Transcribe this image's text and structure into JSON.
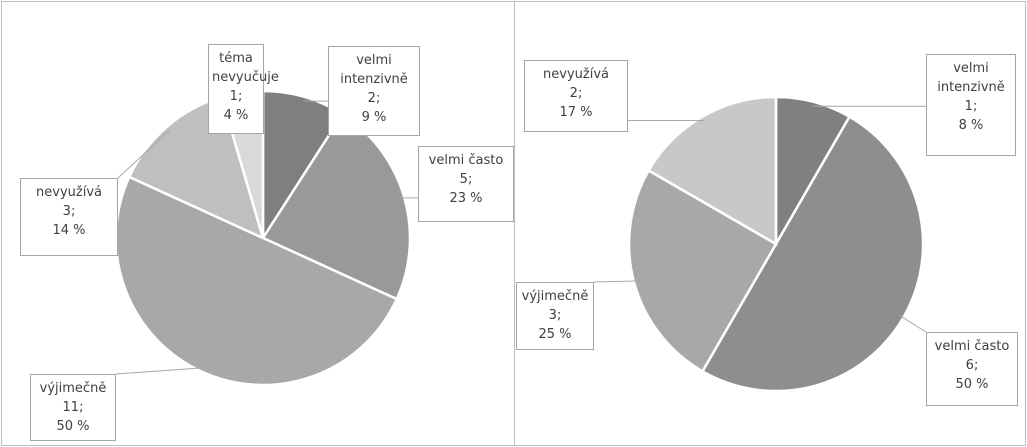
{
  "chart_data": [
    {
      "type": "pie",
      "categories": [
        "velmi intenzivně",
        "velmi často",
        "výjimečně",
        "nevyužívá",
        "téma nevyučuje"
      ],
      "values": [
        2,
        5,
        11,
        3,
        1
      ],
      "value_labels": [
        "2;",
        "5;",
        "11;",
        "3;",
        "1;"
      ],
      "percent_labels": [
        "9 %",
        "23 %",
        "50 %",
        "14 %",
        "4 %"
      ],
      "colors": [
        "#7f7f7f",
        "#999999",
        "#a8a8a8",
        "#bfbfbf",
        "#d9d9d9"
      ]
    },
    {
      "type": "pie",
      "categories": [
        "velmi intenzivně",
        "velmi často",
        "výjimečně",
        "nevyužívá"
      ],
      "values": [
        1,
        6,
        3,
        2
      ],
      "value_labels": [
        "1;",
        "6;",
        "3;",
        "2;"
      ],
      "percent_labels": [
        "8 %",
        "50 %",
        "25 %",
        "17 %"
      ],
      "colors": [
        "#808080",
        "#8e8e8e",
        "#a8a8a8",
        "#c8c8c8"
      ]
    }
  ]
}
